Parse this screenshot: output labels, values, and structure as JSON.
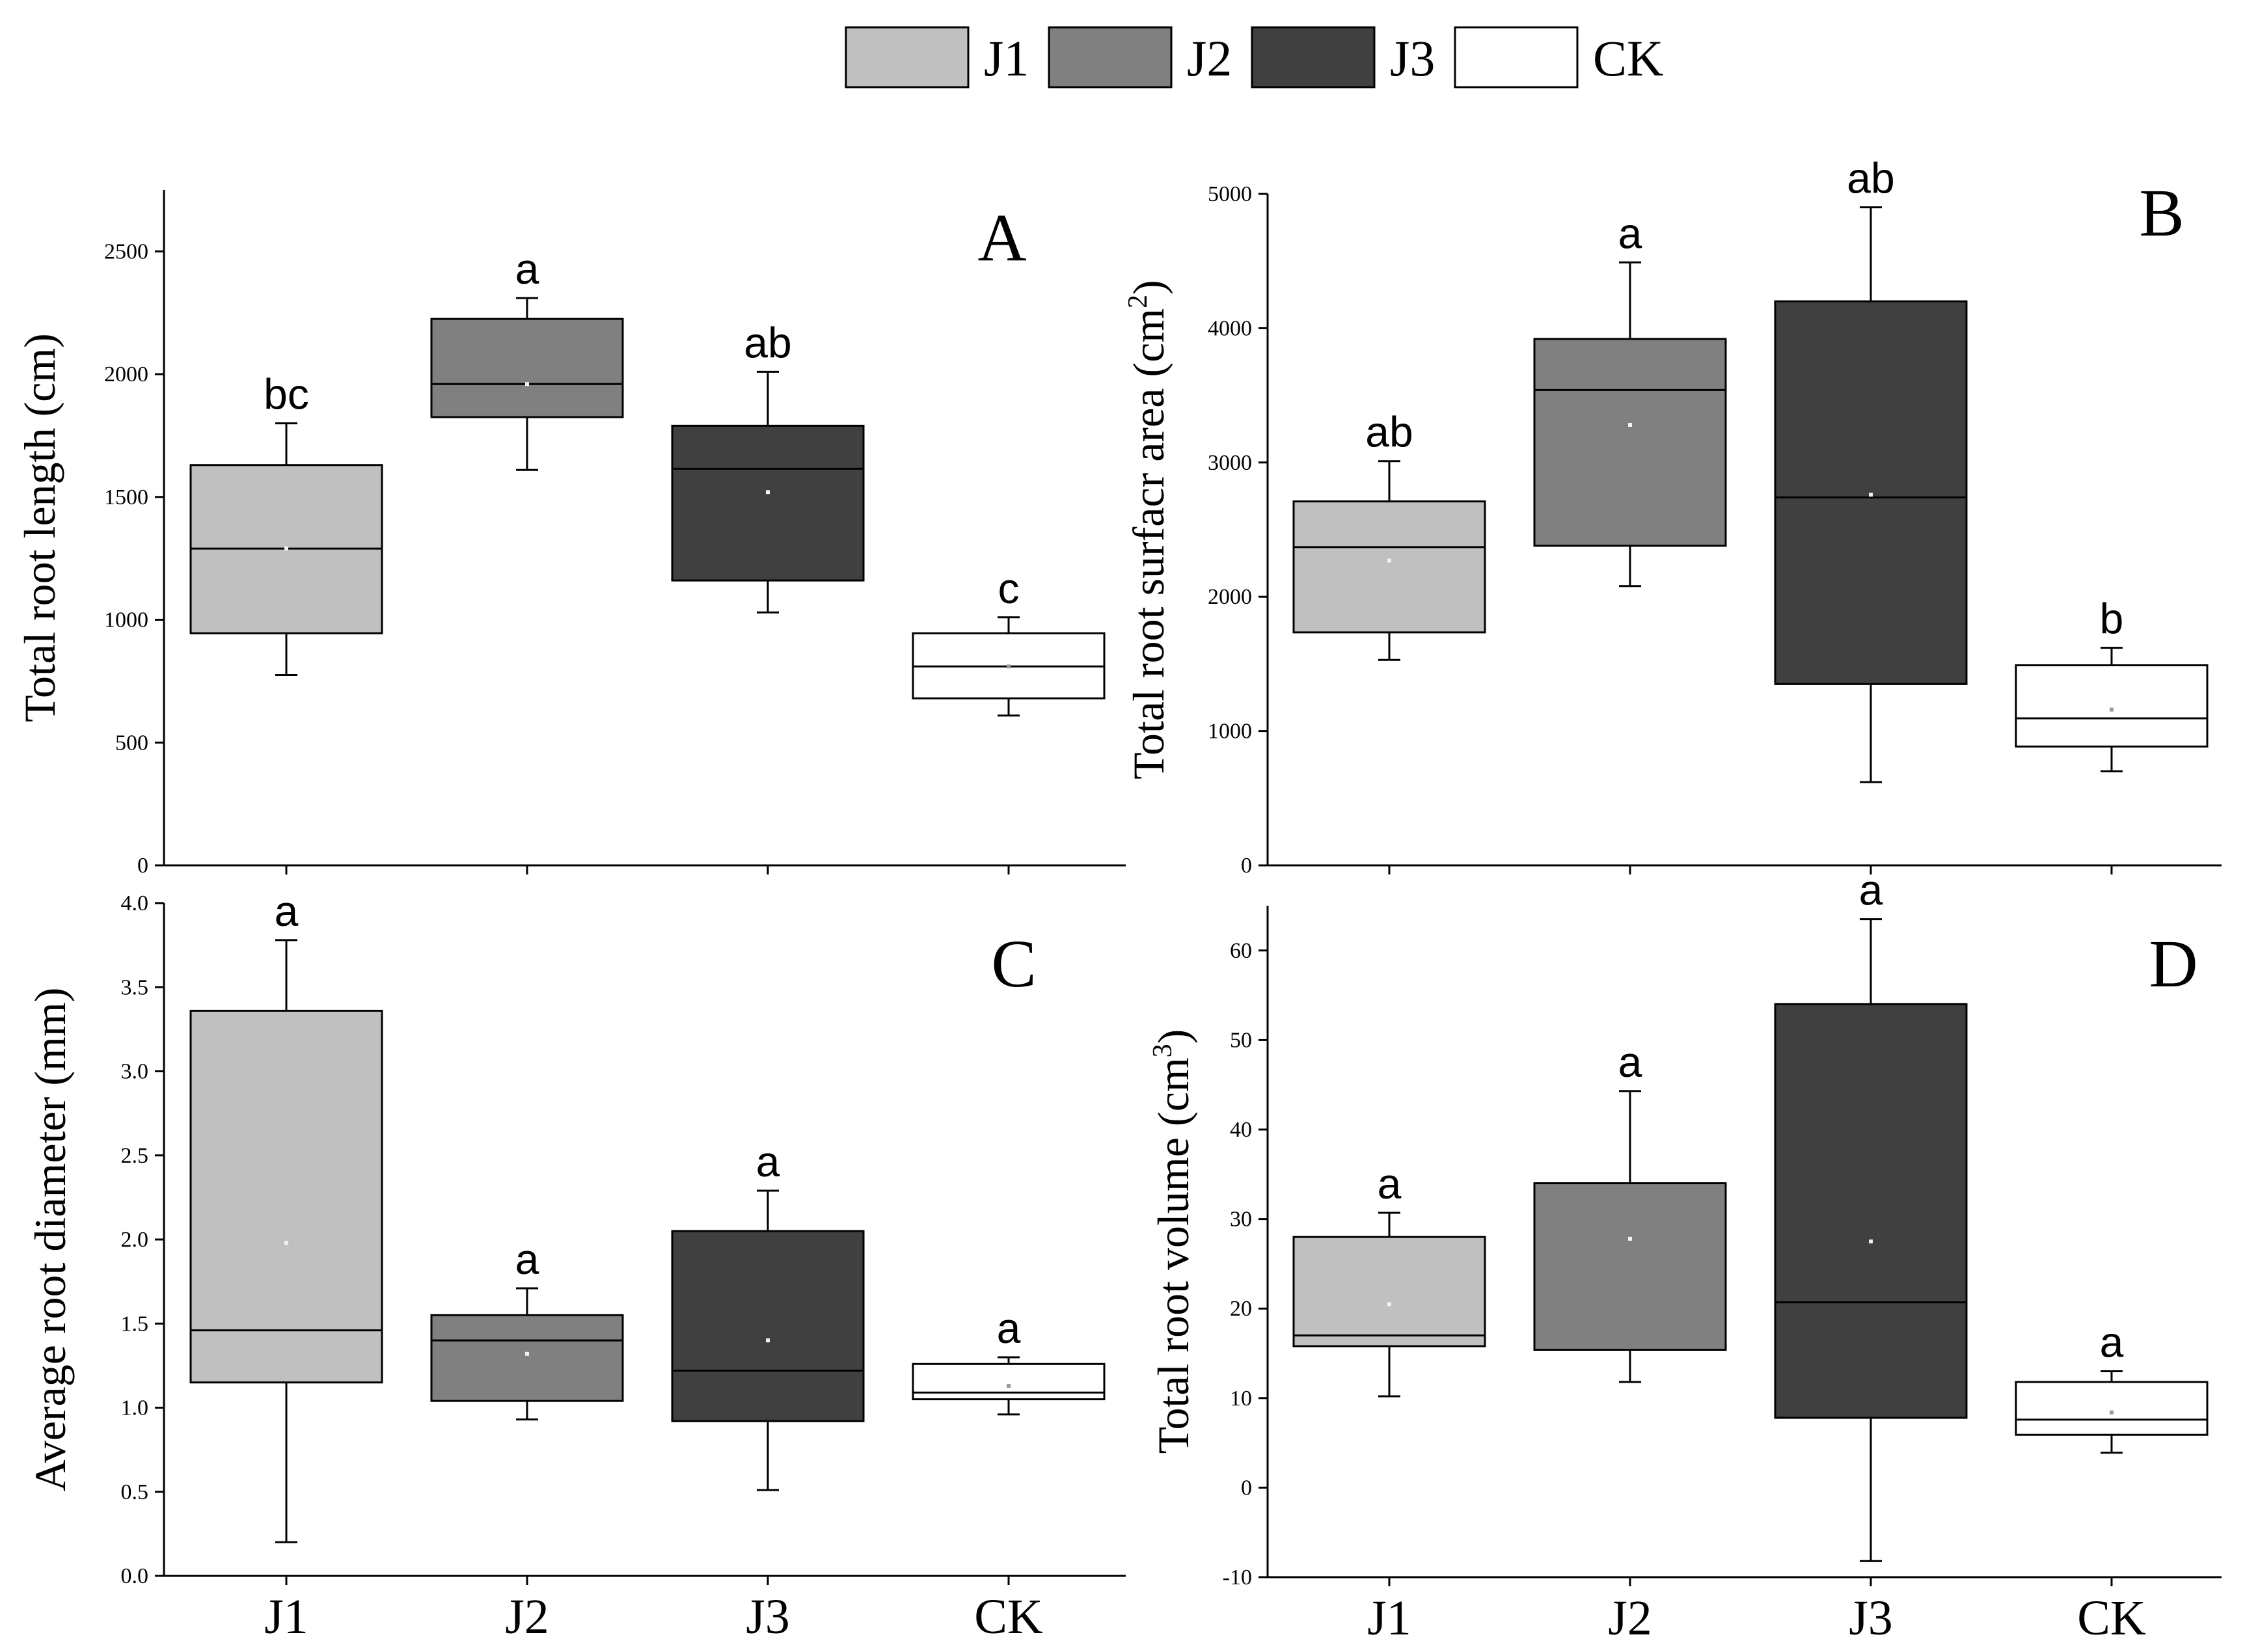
{
  "legend": [
    {
      "label": "J1",
      "color": "#c0c0c0"
    },
    {
      "label": "J2",
      "color": "#808080"
    },
    {
      "label": "J3",
      "color": "#404040"
    },
    {
      "label": "CK",
      "color": "#ffffff"
    }
  ],
  "chart_data": [
    {
      "type": "box",
      "panel": "A",
      "ylabel": "Total root length (cm)",
      "ylabel_superscript": "",
      "ylim": [
        0,
        2750
      ],
      "yticks": [
        0,
        500,
        1000,
        1500,
        2000,
        2500
      ],
      "tick_labels": [
        "0",
        "500",
        "1000",
        "1500",
        "2000",
        "2500"
      ],
      "categories": [
        "J1",
        "J2",
        "J3",
        "CK"
      ],
      "show_x_labels": false,
      "boxes": [
        {
          "name": "J1",
          "whisker_low": 775,
          "q1": 945,
          "median": 1290,
          "q3": 1630,
          "whisker_high": 1800,
          "mean": 1290,
          "letter": "bc",
          "color": "#c0c0c0"
        },
        {
          "name": "J2",
          "whisker_low": 1610,
          "q1": 1825,
          "median": 1960,
          "q3": 2225,
          "whisker_high": 2310,
          "mean": 1960,
          "letter": "a",
          "color": "#808080"
        },
        {
          "name": "J3",
          "whisker_low": 1030,
          "q1": 1160,
          "median": 1615,
          "q3": 1790,
          "whisker_high": 2010,
          "mean": 1520,
          "letter": "ab",
          "color": "#404040"
        },
        {
          "name": "CK",
          "whisker_low": 610,
          "q1": 680,
          "median": 810,
          "q3": 945,
          "whisker_high": 1010,
          "mean": 810,
          "letter": "c",
          "color": "#ffffff"
        }
      ]
    },
    {
      "type": "box",
      "panel": "B",
      "ylabel": "Total root surfacr area (cm",
      "ylabel_superscript": "2",
      "ylim": [
        0,
        5000
      ],
      "yticks": [
        0,
        1000,
        2000,
        3000,
        4000,
        5000
      ],
      "tick_labels": [
        "0",
        "1000",
        "2000",
        "3000",
        "4000",
        "5000"
      ],
      "categories": [
        "J1",
        "J2",
        "J3",
        "CK"
      ],
      "show_x_labels": false,
      "boxes": [
        {
          "name": "J1",
          "whisker_low": 1530,
          "q1": 1735,
          "median": 2370,
          "q3": 2710,
          "whisker_high": 3010,
          "mean": 2270,
          "letter": "ab",
          "color": "#c0c0c0"
        },
        {
          "name": "J2",
          "whisker_low": 2080,
          "q1": 2380,
          "median": 3540,
          "q3": 3920,
          "whisker_high": 4490,
          "mean": 3280,
          "letter": "a",
          "color": "#808080"
        },
        {
          "name": "J3",
          "whisker_low": 620,
          "q1": 1350,
          "median": 2740,
          "q3": 4200,
          "whisker_high": 4900,
          "mean": 2760,
          "letter": "ab",
          "color": "#404040"
        },
        {
          "name": "CK",
          "whisker_low": 700,
          "q1": 885,
          "median": 1095,
          "q3": 1490,
          "whisker_high": 1620,
          "mean": 1160,
          "letter": "b",
          "color": "#ffffff"
        }
      ]
    },
    {
      "type": "box",
      "panel": "C",
      "ylabel": "Average root diameter (mm)",
      "ylabel_superscript": "",
      "ylim": [
        0,
        4.0
      ],
      "yticks": [
        0,
        0.5,
        1.0,
        1.5,
        2.0,
        2.5,
        3.0,
        3.5,
        4.0
      ],
      "tick_labels": [
        "0.0",
        "0.5",
        "1.0",
        "1.5",
        "2.0",
        "2.5",
        "3.0",
        "3.5",
        "4.0"
      ],
      "categories": [
        "J1",
        "J2",
        "J3",
        "CK"
      ],
      "show_x_labels": true,
      "boxes": [
        {
          "name": "J1",
          "whisker_low": 0.2,
          "q1": 1.15,
          "median": 1.46,
          "q3": 3.36,
          "whisker_high": 3.78,
          "mean": 1.98,
          "letter": "a",
          "color": "#c0c0c0"
        },
        {
          "name": "J2",
          "whisker_low": 0.93,
          "q1": 1.04,
          "median": 1.4,
          "q3": 1.55,
          "whisker_high": 1.71,
          "mean": 1.32,
          "letter": "a",
          "color": "#808080"
        },
        {
          "name": "J3",
          "whisker_low": 0.51,
          "q1": 0.92,
          "median": 1.22,
          "q3": 2.05,
          "whisker_high": 2.29,
          "mean": 1.4,
          "letter": "a",
          "color": "#404040"
        },
        {
          "name": "CK",
          "whisker_low": 0.96,
          "q1": 1.05,
          "median": 1.09,
          "q3": 1.26,
          "whisker_high": 1.3,
          "mean": 1.13,
          "letter": "a",
          "color": "#ffffff"
        }
      ]
    },
    {
      "type": "box",
      "panel": "D",
      "ylabel": "Total root volume (cm",
      "ylabel_superscript": "3",
      "ylim": [
        -10,
        65
      ],
      "yticks": [
        -10,
        0,
        10,
        20,
        30,
        40,
        50,
        60
      ],
      "tick_labels": [
        "-10",
        "0",
        "10",
        "20",
        "30",
        "40",
        "50",
        "60"
      ],
      "categories": [
        "J1",
        "J2",
        "J3",
        "CK"
      ],
      "show_x_labels": true,
      "boxes": [
        {
          "name": "J1",
          "whisker_low": 10.2,
          "q1": 15.8,
          "median": 17.0,
          "q3": 28.0,
          "whisker_high": 30.7,
          "mean": 20.5,
          "letter": "a",
          "color": "#c0c0c0"
        },
        {
          "name": "J2",
          "whisker_low": 11.8,
          "q1": 15.4,
          "median": 15.4,
          "q3": 34.0,
          "whisker_high": 44.3,
          "mean": 27.8,
          "letter": "a",
          "color": "#808080"
        },
        {
          "name": "J3",
          "whisker_low": -8.2,
          "q1": 7.8,
          "median": 20.7,
          "q3": 54.0,
          "whisker_high": 63.5,
          "mean": 27.5,
          "letter": "a",
          "color": "#404040"
        },
        {
          "name": "CK",
          "whisker_low": 3.9,
          "q1": 5.9,
          "median": 7.6,
          "q3": 11.8,
          "whisker_high": 13.0,
          "mean": 8.4,
          "letter": "a",
          "color": "#ffffff"
        }
      ]
    }
  ]
}
